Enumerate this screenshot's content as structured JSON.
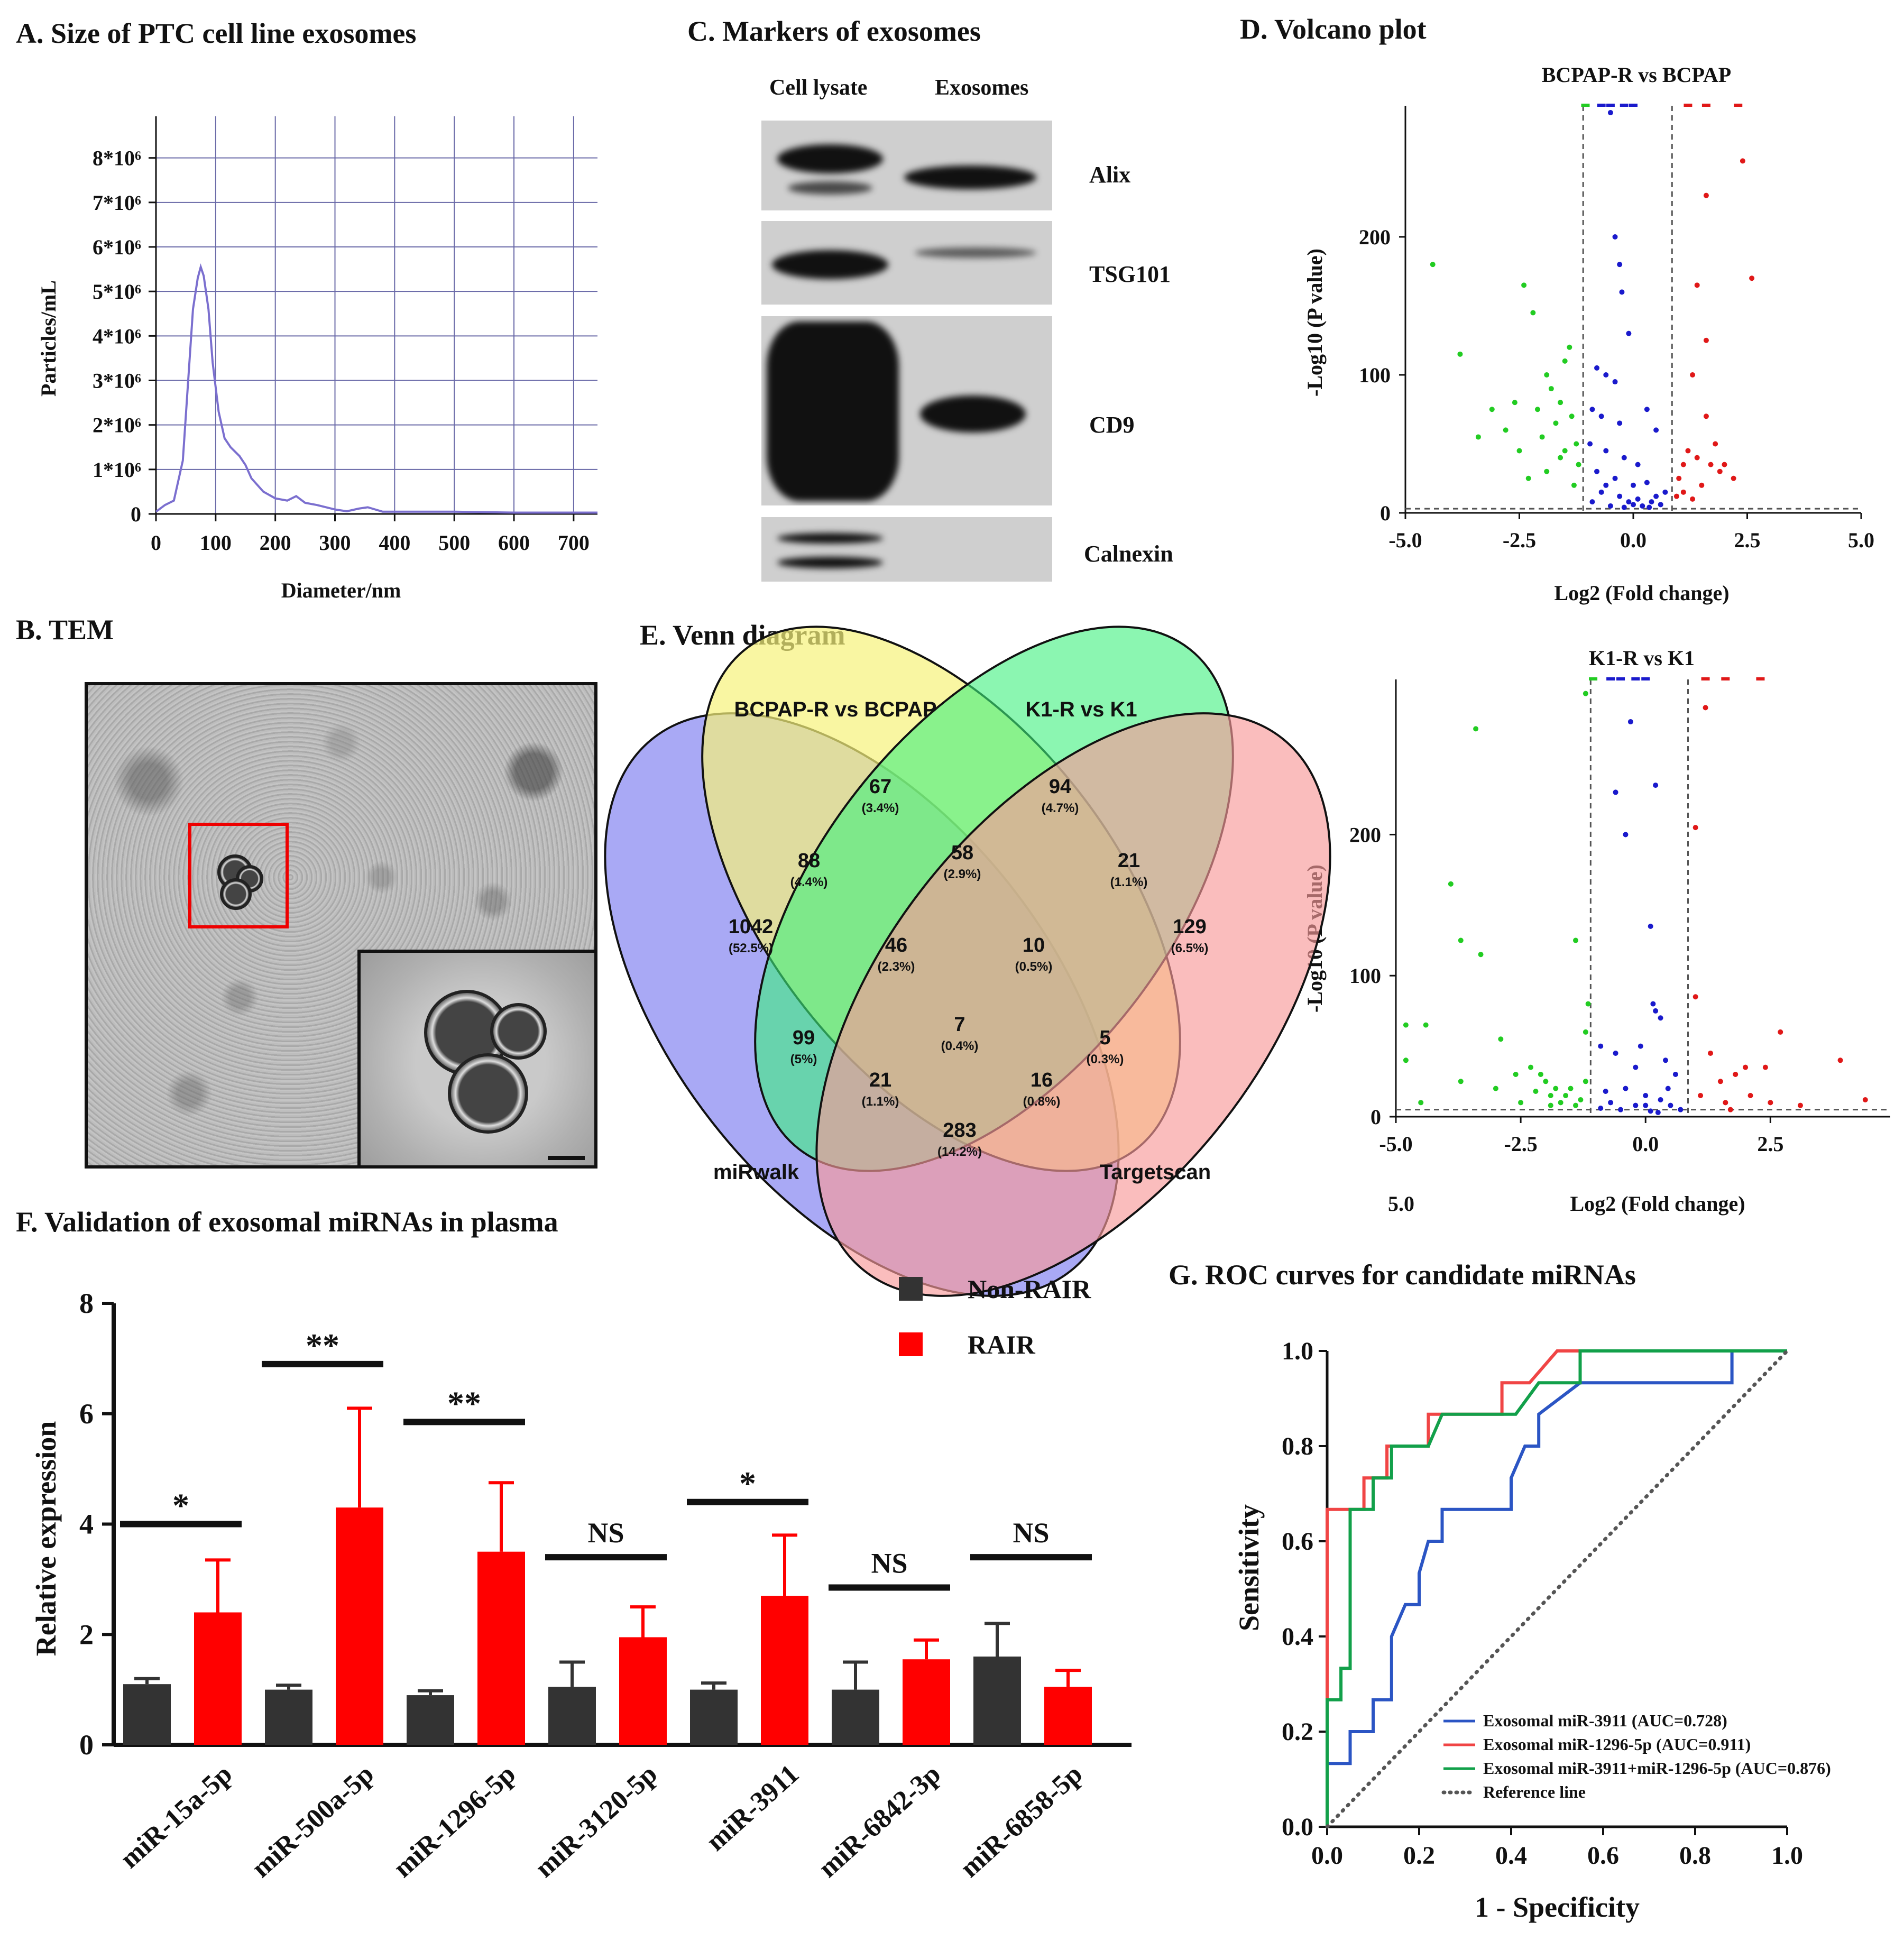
{
  "panels": {
    "A": {
      "title": "A. Size of PTC cell line exosomes",
      "xlabel": "Diameter/nm",
      "ylabel": "Particles/mL",
      "x_ticks": [
        "0",
        "100",
        "200",
        "300",
        "400",
        "500",
        "600",
        "700"
      ],
      "y_ticks": [
        "0",
        "1*10⁶",
        "2*10⁶",
        "3*10⁶",
        "4*10⁶",
        "5*10⁶",
        "6*10⁶",
        "7*10⁶",
        "8*10⁶"
      ],
      "line_color": "#7b6fcf"
    },
    "B": {
      "title": "B. TEM"
    },
    "C": {
      "title": "C. Markers of exosomes",
      "col_labels": [
        "Cell lysate",
        "Exosomes"
      ],
      "markers": [
        "Alix",
        "TSG101",
        "CD9",
        "Calnexin"
      ]
    },
    "D": {
      "title": "D. Volcano plot",
      "plots": [
        {
          "subtitle": "BCPAP-R vs BCPAP",
          "xlabel": "Log2 (Fold change)",
          "ylabel": "-Log10 (P value)",
          "x_ticks": [
            "-5.0",
            "-2.5",
            "0.0",
            "2.5",
            "5.0"
          ],
          "y_ticks": [
            "0",
            "100",
            "200"
          ]
        },
        {
          "subtitle": "K1-R vs K1",
          "xlabel": "Log2 (Fold change)",
          "ylabel": "-Log10 (P value)",
          "x_ticks": [
            "-5.0",
            "-2.5",
            "0.0",
            "2.5"
          ],
          "x_extra": "5.0",
          "y_ticks": [
            "0",
            "100",
            "200"
          ]
        }
      ],
      "colors": {
        "down": "#22cc22",
        "ns": "#1a1acc",
        "up": "#e01818"
      }
    },
    "E": {
      "title": "E. Venn diagram",
      "sets": [
        {
          "name": "BCPAP-R vs BCPAP",
          "color": "#8a7a10"
        },
        {
          "name": "K1-R vs K1",
          "color": "#1d9a1d"
        },
        {
          "name": "miRwalk",
          "color": "#1a1ad0"
        },
        {
          "name": "Targetscan",
          "color": "#e01818"
        }
      ],
      "regions": [
        {
          "n": "67",
          "p": "(3.4%)"
        },
        {
          "n": "94",
          "p": "(4.7%)"
        },
        {
          "n": "88",
          "p": "(4.4%)"
        },
        {
          "n": "58",
          "p": "(2.9%)"
        },
        {
          "n": "21",
          "p": "(1.1%)"
        },
        {
          "n": "1042",
          "p": "(52.5%)"
        },
        {
          "n": "46",
          "p": "(2.3%)"
        },
        {
          "n": "10",
          "p": "(0.5%)"
        },
        {
          "n": "129",
          "p": "(6.5%)"
        },
        {
          "n": "7",
          "p": "(0.4%)"
        },
        {
          "n": "99",
          "p": "(5%)"
        },
        {
          "n": "5",
          "p": "(0.3%)"
        },
        {
          "n": "21",
          "p": "(1.1%)"
        },
        {
          "n": "16",
          "p": "(0.8%)"
        },
        {
          "n": "283",
          "p": "(14.2%)"
        }
      ]
    },
    "F": {
      "title": "F. Validation of exosomal miRNAs in plasma"
    },
    "G": {
      "title": "G. ROC curves for candidate miRNAs"
    }
  },
  "chart_data": [
    {
      "id": "A",
      "type": "line",
      "title": "A. Size of PTC cell line exosomes",
      "xlabel": "Diameter/nm",
      "ylabel": "Particles/mL",
      "xlim": [
        0,
        740
      ],
      "ylim": [
        0,
        8.4
      ],
      "y_unit": "10^6",
      "x": [
        0,
        15,
        30,
        45,
        55,
        62,
        70,
        75,
        80,
        88,
        95,
        105,
        115,
        125,
        140,
        150,
        160,
        180,
        200,
        220,
        235,
        250,
        270,
        300,
        320,
        340,
        355,
        380,
        420,
        500,
        600,
        700,
        740
      ],
      "y": [
        0.05,
        0.2,
        0.3,
        1.2,
        3.2,
        4.6,
        5.3,
        5.55,
        5.35,
        4.6,
        3.4,
        2.3,
        1.7,
        1.5,
        1.3,
        1.1,
        0.8,
        0.5,
        0.35,
        0.3,
        0.4,
        0.25,
        0.2,
        0.1,
        0.06,
        0.12,
        0.15,
        0.05,
        0.05,
        0.05,
        0.03,
        0.03,
        0.03
      ]
    },
    {
      "id": "D1",
      "type": "scatter",
      "title": "BCPAP-R vs BCPAP",
      "xlabel": "Log2 (Fold change)",
      "ylabel": "-Log10 (P value)",
      "xlim": [
        -5,
        5
      ],
      "ylim": [
        0,
        295
      ],
      "thresholds_x": [
        -1.1,
        0.85
      ],
      "threshold_y": 3,
      "down": [
        [
          -4.4,
          180
        ],
        [
          -3.8,
          115
        ],
        [
          -3.1,
          75
        ],
        [
          -2.8,
          60
        ],
        [
          -2.5,
          45
        ],
        [
          -2.4,
          165
        ],
        [
          -2.2,
          145
        ],
        [
          -2.1,
          75
        ],
        [
          -2.0,
          55
        ],
        [
          -1.9,
          30
        ],
        [
          -1.8,
          90
        ],
        [
          -1.7,
          65
        ],
        [
          -1.6,
          80
        ],
        [
          -1.5,
          110
        ],
        [
          -1.5,
          45
        ],
        [
          -1.4,
          120
        ],
        [
          -1.35,
          70
        ],
        [
          -1.3,
          20
        ],
        [
          -1.25,
          50
        ],
        [
          -1.2,
          35
        ],
        [
          -2.6,
          80
        ],
        [
          -3.4,
          55
        ],
        [
          -1.9,
          100
        ],
        [
          -2.3,
          25
        ],
        [
          -1.6,
          40
        ]
      ],
      "ns": [
        [
          -0.5,
          290
        ],
        [
          -0.4,
          200
        ],
        [
          -0.3,
          180
        ],
        [
          -0.25,
          160
        ],
        [
          -0.1,
          130
        ],
        [
          -0.8,
          105
        ],
        [
          -0.6,
          100
        ],
        [
          -0.4,
          95
        ],
        [
          -0.9,
          75
        ],
        [
          -0.7,
          70
        ],
        [
          -0.3,
          65
        ],
        [
          0.3,
          75
        ],
        [
          0.5,
          60
        ],
        [
          -0.95,
          50
        ],
        [
          -0.6,
          45
        ],
        [
          -0.2,
          40
        ],
        [
          0.1,
          35
        ],
        [
          -0.8,
          30
        ],
        [
          -0.4,
          25
        ],
        [
          0.0,
          20
        ],
        [
          0.3,
          22
        ],
        [
          -0.7,
          15
        ],
        [
          -0.3,
          12
        ],
        [
          0.1,
          10
        ],
        [
          0.4,
          8
        ],
        [
          -0.9,
          8
        ],
        [
          -0.5,
          5
        ],
        [
          0.2,
          5
        ],
        [
          0.6,
          6
        ],
        [
          -0.2,
          4
        ],
        [
          0.5,
          12
        ],
        [
          -0.1,
          8
        ],
        [
          0.7,
          15
        ],
        [
          -0.6,
          20
        ],
        [
          0.0,
          6
        ],
        [
          0.35,
          4
        ]
      ],
      "up": [
        [
          2.4,
          255
        ],
        [
          1.6,
          230
        ],
        [
          2.6,
          170
        ],
        [
          1.4,
          165
        ],
        [
          1.6,
          125
        ],
        [
          1.6,
          70
        ],
        [
          1.3,
          100
        ],
        [
          1.2,
          45
        ],
        [
          1.4,
          40
        ],
        [
          1.7,
          35
        ],
        [
          1.9,
          30
        ],
        [
          2.2,
          25
        ],
        [
          1.0,
          25
        ],
        [
          1.5,
          20
        ],
        [
          1.1,
          15
        ],
        [
          1.3,
          10
        ],
        [
          2.0,
          35
        ],
        [
          1.8,
          50
        ],
        [
          1.1,
          35
        ],
        [
          0.95,
          12
        ]
      ]
    },
    {
      "id": "D2",
      "type": "scatter",
      "title": "K1-R vs K1",
      "xlabel": "Log2 (Fold change)",
      "ylabel": "-Log10 (P value)",
      "xlim": [
        -5,
        4.9
      ],
      "ylim": [
        0,
        310
      ],
      "thresholds_x": [
        -1.1,
        0.85
      ],
      "threshold_y": 5,
      "down": [
        [
          -3.4,
          275
        ],
        [
          -3.9,
          165
        ],
        [
          -3.7,
          125
        ],
        [
          -3.3,
          115
        ],
        [
          -1.2,
          300
        ],
        [
          -1.4,
          125
        ],
        [
          -4.8,
          40
        ],
        [
          -4.4,
          65
        ],
        [
          -4.8,
          65
        ],
        [
          -2.9,
          55
        ],
        [
          -2.6,
          30
        ],
        [
          -2.3,
          35
        ],
        [
          -2.1,
          30
        ],
        [
          -2.0,
          25
        ],
        [
          -1.9,
          15
        ],
        [
          -1.8,
          20
        ],
        [
          -1.7,
          10
        ],
        [
          -1.6,
          15
        ],
        [
          -1.5,
          20
        ],
        [
          -1.4,
          8
        ],
        [
          -1.3,
          12
        ],
        [
          -1.2,
          25
        ],
        [
          -1.15,
          80
        ],
        [
          -1.2,
          60
        ],
        [
          -3.0,
          20
        ],
        [
          -2.5,
          10
        ],
        [
          -2.2,
          18
        ],
        [
          -4.5,
          10
        ],
        [
          -3.7,
          25
        ],
        [
          -1.9,
          8
        ]
      ],
      "ns": [
        [
          -0.3,
          280
        ],
        [
          0.2,
          235
        ],
        [
          -0.6,
          230
        ],
        [
          -0.4,
          200
        ],
        [
          0.1,
          135
        ],
        [
          0.15,
          80
        ],
        [
          0.2,
          75
        ],
        [
          0.3,
          70
        ],
        [
          -0.1,
          50
        ],
        [
          0.4,
          40
        ],
        [
          -0.2,
          35
        ],
        [
          -0.9,
          50
        ],
        [
          -0.6,
          45
        ],
        [
          0.6,
          30
        ],
        [
          -0.4,
          20
        ],
        [
          0.0,
          15
        ],
        [
          0.3,
          12
        ],
        [
          -0.7,
          10
        ],
        [
          -0.2,
          8
        ],
        [
          0.5,
          8
        ],
        [
          -0.5,
          5
        ],
        [
          0.1,
          4
        ],
        [
          0.7,
          5
        ],
        [
          -0.9,
          6
        ],
        [
          0.0,
          8
        ],
        [
          0.45,
          20
        ],
        [
          -0.8,
          18
        ],
        [
          0.25,
          3
        ]
      ],
      "up": [
        [
          1.2,
          290
        ],
        [
          1.0,
          205
        ],
        [
          1.0,
          85
        ],
        [
          2.4,
          35
        ],
        [
          2.7,
          60
        ],
        [
          3.9,
          40
        ],
        [
          1.3,
          45
        ],
        [
          1.5,
          25
        ],
        [
          1.8,
          30
        ],
        [
          2.1,
          15
        ],
        [
          2.5,
          10
        ],
        [
          3.1,
          8
        ],
        [
          4.4,
          12
        ],
        [
          1.6,
          10
        ],
        [
          2.0,
          35
        ],
        [
          1.1,
          15
        ],
        [
          1.7,
          5
        ]
      ]
    },
    {
      "id": "F",
      "type": "bar",
      "title": "F. Validation of exosomal miRNAs in plasma",
      "ylabel": "Relative expression",
      "ylim": [
        0,
        8
      ],
      "y_ticks": [
        "0",
        "2",
        "4",
        "6",
        "8"
      ],
      "categories": [
        "miR-15a-5p",
        "miR-500a-5p",
        "miR-1296-5p",
        "miR-3120-5p",
        "miR-3911",
        "miR-6842-3p",
        "miR-6858-5p"
      ],
      "series": [
        {
          "name": "Non-RAIR",
          "color": "#333333",
          "values": [
            1.1,
            1.0,
            0.9,
            1.05,
            1.0,
            1.0,
            1.6
          ],
          "err": [
            0.1,
            0.08,
            0.08,
            0.45,
            0.12,
            0.5,
            0.6
          ]
        },
        {
          "name": "RAIR",
          "color": "#ff0000",
          "values": [
            2.4,
            4.3,
            3.5,
            1.95,
            2.7,
            1.55,
            1.05
          ],
          "err": [
            0.95,
            1.8,
            1.25,
            0.55,
            1.1,
            0.35,
            0.3
          ]
        }
      ],
      "significance": [
        {
          "label": "*",
          "y": 4.0
        },
        {
          "label": "**",
          "y": 6.9
        },
        {
          "label": "**",
          "y": 5.85
        },
        {
          "label": "NS",
          "y": 3.4
        },
        {
          "label": "*",
          "y": 4.4
        },
        {
          "label": "NS",
          "y": 2.85
        },
        {
          "label": "NS",
          "y": 3.4
        }
      ]
    },
    {
      "id": "G",
      "type": "line",
      "title": "G. ROC curves for candidate miRNAs",
      "xlabel": "1 - Specificity",
      "ylabel": "Sensitivity",
      "xlim": [
        0,
        1
      ],
      "ylim": [
        0,
        1
      ],
      "x_ticks": [
        "0.0",
        "0.2",
        "0.4",
        "0.6",
        "0.8",
        "1.0"
      ],
      "y_ticks": [
        "0.0",
        "0.2",
        "0.4",
        "0.6",
        "0.8",
        "1.0"
      ],
      "series": [
        {
          "name": "Exosomal miR-3911 (AUC=0.728)",
          "color": "#2b55c4",
          "points": [
            [
              0,
              0.133
            ],
            [
              0.05,
              0.133
            ],
            [
              0.05,
              0.2
            ],
            [
              0.1,
              0.2
            ],
            [
              0.1,
              0.267
            ],
            [
              0.14,
              0.267
            ],
            [
              0.14,
              0.4
            ],
            [
              0.17,
              0.467
            ],
            [
              0.2,
              0.467
            ],
            [
              0.2,
              0.533
            ],
            [
              0.22,
              0.6
            ],
            [
              0.25,
              0.6
            ],
            [
              0.25,
              0.667
            ],
            [
              0.4,
              0.667
            ],
            [
              0.4,
              0.733
            ],
            [
              0.43,
              0.8
            ],
            [
              0.46,
              0.8
            ],
            [
              0.46,
              0.867
            ],
            [
              0.55,
              0.933
            ],
            [
              0.88,
              0.933
            ],
            [
              0.88,
              1.0
            ],
            [
              1.0,
              1.0
            ]
          ]
        },
        {
          "name": "Exosomal miR-1296-5p (AUC=0.911)",
          "color": "#f04545",
          "points": [
            [
              0,
              0
            ],
            [
              0,
              0.667
            ],
            [
              0.08,
              0.667
            ],
            [
              0.08,
              0.733
            ],
            [
              0.13,
              0.733
            ],
            [
              0.13,
              0.8
            ],
            [
              0.22,
              0.8
            ],
            [
              0.22,
              0.867
            ],
            [
              0.38,
              0.867
            ],
            [
              0.38,
              0.933
            ],
            [
              0.44,
              0.933
            ],
            [
              0.5,
              1.0
            ],
            [
              1.0,
              1.0
            ]
          ]
        },
        {
          "name": "Exosomal miR-3911+miR-1296-5p (AUC=0.876)",
          "color": "#12a04a",
          "points": [
            [
              0,
              0
            ],
            [
              0,
              0.267
            ],
            [
              0.03,
              0.267
            ],
            [
              0.03,
              0.333
            ],
            [
              0.05,
              0.333
            ],
            [
              0.05,
              0.667
            ],
            [
              0.1,
              0.667
            ],
            [
              0.1,
              0.733
            ],
            [
              0.14,
              0.733
            ],
            [
              0.14,
              0.8
            ],
            [
              0.22,
              0.8
            ],
            [
              0.25,
              0.867
            ],
            [
              0.41,
              0.867
            ],
            [
              0.46,
              0.933
            ],
            [
              0.55,
              0.933
            ],
            [
              0.55,
              1.0
            ],
            [
              1.0,
              1.0
            ]
          ]
        },
        {
          "name": "Reference line",
          "color": "#555555",
          "dash": true,
          "points": [
            [
              0,
              0
            ],
            [
              1,
              1
            ]
          ]
        }
      ]
    }
  ]
}
